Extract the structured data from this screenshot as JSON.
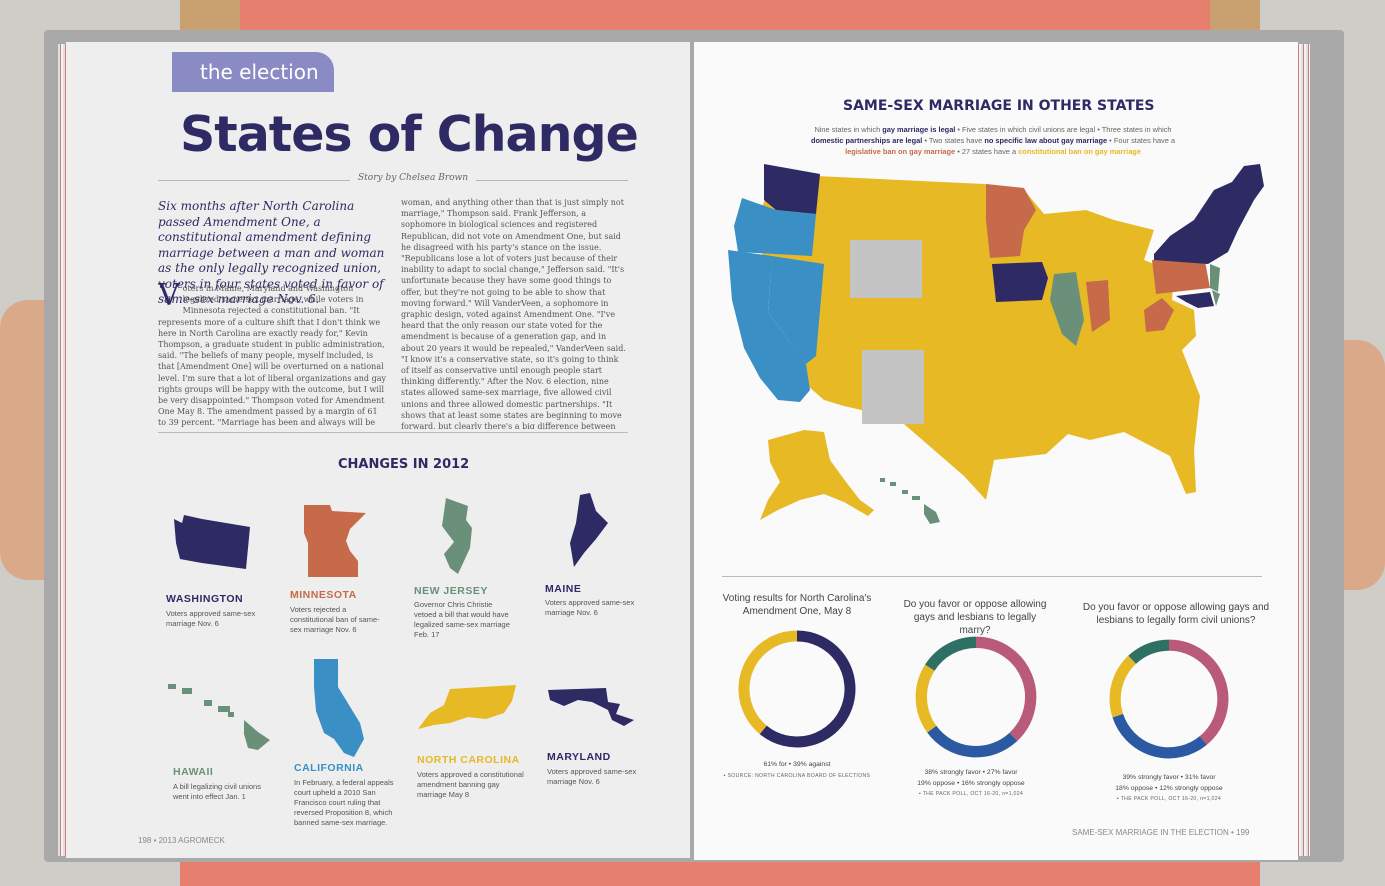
{
  "colors": {
    "navy": "#2d2a64",
    "orange": "#c66a4a",
    "sage": "#6b907a",
    "yellow": "#e7b924",
    "blue": "#3a8fc4",
    "gray": "#c4c4c4",
    "pink": "#b85a78",
    "teal": "#2f7064",
    "royal": "#2c5aa2"
  },
  "left": {
    "section_tag": "the election",
    "title": "States of Change",
    "byline": "Story by Chelsea Brown",
    "intro": "Six months after North Carolina passed Amendment One, a constitutional amendment defining marriage between a man and woman as the only legally recognized union, voters in four states voted in favor of same-sex marriage Nov. 6.",
    "dropcap": "V",
    "body_1": "oters in Maine, Maryland and Washington legalized same-sex marriage, while voters in Minnesota rejected a constitutional ban. \"It represents more of a culture shift that I don't think we here in North Carolina are exactly ready for,\" Kevin Thompson, a graduate student in public administration, said. \"The beliefs of many people, myself included, is that [Amendment One] will be overturned on a national level. I'm sure that a lot of liberal organizations and gay rights groups will be happy with the outcome, but I will be very disappointed.\" Thompson voted for Amendment One May 8. The amendment passed by a margin of 61 to 39 percent. \"Marriage has been and always will be between a man and a",
    "body_2": "woman, and anything other than that is just simply not marriage,\" Thompson said. Frank Jefferson, a sophomore in biological sciences and registered Republican, did not vote on Amendment One, but said he disagreed with his party's stance on the issue. \"Republicans lose a lot of voters just because of their inability to adapt to social change,\" Jefferson said. \"It's unfortunate because they have some good things to offer, but they're not going to be able to show that moving forward.\" Will VanderVeen, a sophomore in graphic design, voted against Amendment One. \"I've heard that the only reason our state voted for the amendment is because of a generation gap, and in about 20 years it would be repealed,\" VanderVeen said. \"I know it's a conservative state, so it's going to think of itself as conservative until enough people start thinking differently.\" After the Nov. 6 election, nine states allowed same-sex marriage, five allowed civil unions and three allowed domestic partnerships. \"It shows that at least some states are beginning to move forward, but clearly there's a big difference between states,\" Jefferson said.",
    "changes_title": "CHANGES IN 2012",
    "states": [
      {
        "name": "WASHINGTON",
        "desc": "Voters approved same-sex marriage Nov. 6",
        "color": "#2d2a64"
      },
      {
        "name": "MINNESOTA",
        "desc": "Voters rejected a constitutional ban of same-sex marriage Nov. 6",
        "color": "#c66a4a"
      },
      {
        "name": "NEW JERSEY",
        "desc": "Governor Chris Christie vetoed a bill that would have legalized same-sex marriage Feb. 17",
        "color": "#6b907a"
      },
      {
        "name": "MAINE",
        "desc": "Voters approved same-sex marriage Nov. 6",
        "color": "#2d2a64"
      },
      {
        "name": "HAWAII",
        "desc": "A bill legalizing civil unions went into effect Jan. 1",
        "color": "#6b907a"
      },
      {
        "name": "CALIFORNIA",
        "desc": "In February, a federal appeals court upheld a 2010 San Francisco court ruling that reversed Proposition 8, which banned same-sex marriage.",
        "color": "#3a8fc4"
      },
      {
        "name": "NORTH CAROLINA",
        "desc": "Voters approved a constitutional amendment banning gay marriage May 8",
        "color": "#e7b924"
      },
      {
        "name": "MARYLAND",
        "desc": "Voters approved same-sex marriage Nov. 6",
        "color": "#2d2a64"
      }
    ],
    "footer": "198 • 2013 AGROMECK"
  },
  "right": {
    "map_title": "SAME-SEX MARRIAGE IN OTHER STATES",
    "legend": {
      "a": "Nine states in which ",
      "a_b": "gay marriage is legal",
      "a2": " • Five states in which civil unions are legal • Three states in which ",
      "b_b": "domestic partnerships are legal",
      "b2": " • Two states have ",
      "c_b": "no specific law about gay marriage",
      "c2": " • Four states have a ",
      "d_o": "legislative ban on gay marriage",
      "d2": " • 27 states have a ",
      "e_y": "constitutional ban on gay marriage"
    },
    "polls": [
      {
        "question": "Voting results for North Carolina's Amendment One, May 8",
        "stat_1": "61% for • 39% against",
        "stat_2": "",
        "source": "▪ SOURCE: NORTH CAROLINA BOARD OF ELECTIONS"
      },
      {
        "question": "Do you favor or oppose allowing gays and lesbians to legally marry?",
        "stat_1": "38% strongly favor • 27% favor",
        "stat_2": "19% oppose • 16% strongly oppose",
        "source": "▪ THE PACK POLL, OCT 16-20, n=1,024"
      },
      {
        "question": "Do you favor or oppose allowing gays and lesbians to legally form civil unions?",
        "stat_1": "39% strongly favor • 31% favor",
        "stat_2": "18% oppose • 12% strongly oppose",
        "source": "▪ THE PACK POLL, OCT 16-20, n=1,024"
      }
    ],
    "footer": "SAME-SEX MARRIAGE IN THE ELECTION • 199"
  },
  "chart_data": [
    {
      "type": "pie",
      "title": "Voting results for North Carolina's Amendment One, May 8",
      "categories": [
        "for",
        "against"
      ],
      "values": [
        61,
        39
      ],
      "colors": [
        "#2d2a64",
        "#e7b924"
      ]
    },
    {
      "type": "pie",
      "title": "Do you favor or oppose allowing gays and lesbians to legally marry?",
      "categories": [
        "strongly favor",
        "favor",
        "oppose",
        "strongly oppose"
      ],
      "values": [
        38,
        27,
        19,
        16
      ],
      "colors": [
        "#b85a78",
        "#2c5aa2",
        "#e7b924",
        "#2f7064"
      ]
    },
    {
      "type": "pie",
      "title": "Do you favor or oppose allowing gays and lesbians to legally form civil unions?",
      "categories": [
        "strongly favor",
        "favor",
        "oppose",
        "strongly oppose"
      ],
      "values": [
        39,
        31,
        18,
        12
      ],
      "colors": [
        "#b85a78",
        "#2c5aa2",
        "#e7b924",
        "#2f7064"
      ]
    }
  ]
}
